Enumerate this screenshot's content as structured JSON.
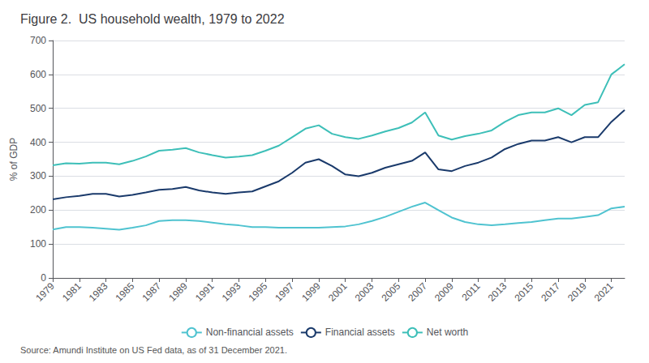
{
  "chart_data": {
    "type": "line",
    "title": "Figure 2.  US household wealth, 1979 to 2022",
    "annotations": [
      "Source: Amundi Institute on US Fed data, as of 31 December 2021."
    ],
    "y_label": "% of GDP",
    "x": [
      1979,
      1980,
      1981,
      1982,
      1983,
      1984,
      1985,
      1986,
      1987,
      1988,
      1989,
      1990,
      1991,
      1992,
      1993,
      1994,
      1995,
      1996,
      1997,
      1998,
      1999,
      2000,
      2001,
      2002,
      2003,
      2004,
      2005,
      2006,
      2007,
      2008,
      2009,
      2010,
      2011,
      2012,
      2013,
      2014,
      2015,
      2016,
      2017,
      2018,
      2019,
      2020,
      2021,
      2022
    ],
    "series": [
      {
        "name": "Non-financial assets",
        "color": "#4fc3d0",
        "values": [
          143,
          150,
          150,
          148,
          145,
          142,
          148,
          155,
          168,
          170,
          170,
          168,
          163,
          158,
          155,
          150,
          150,
          148,
          148,
          148,
          148,
          150,
          152,
          158,
          168,
          180,
          195,
          210,
          222,
          200,
          178,
          165,
          158,
          155,
          158,
          162,
          165,
          170,
          175,
          175,
          180,
          185,
          205,
          210
        ]
      },
      {
        "name": "Financial assets",
        "color": "#1a3a6b",
        "values": [
          232,
          238,
          242,
          248,
          248,
          240,
          245,
          252,
          260,
          262,
          268,
          258,
          252,
          248,
          252,
          255,
          270,
          285,
          310,
          340,
          350,
          330,
          305,
          300,
          310,
          325,
          335,
          345,
          370,
          320,
          315,
          330,
          340,
          355,
          380,
          395,
          405,
          405,
          415,
          400,
          415,
          415,
          460,
          495
        ]
      },
      {
        "name": "Net worth",
        "color": "#3dbfb8",
        "values": [
          332,
          338,
          337,
          340,
          340,
          335,
          345,
          358,
          375,
          378,
          383,
          370,
          362,
          355,
          358,
          362,
          375,
          390,
          415,
          440,
          450,
          425,
          415,
          410,
          420,
          432,
          442,
          458,
          488,
          420,
          408,
          418,
          425,
          435,
          460,
          480,
          488,
          488,
          500,
          480,
          510,
          518,
          600,
          630
        ]
      }
    ],
    "xlim": [
      1979,
      2022
    ],
    "xticks": [
      1979,
      1981,
      1983,
      1985,
      1987,
      1989,
      1991,
      1993,
      1995,
      1997,
      1999,
      2001,
      2003,
      2005,
      2007,
      2009,
      2011,
      2013,
      2015,
      2017,
      2019,
      2021
    ],
    "ylim": [
      0,
      700
    ],
    "yticks": [
      0,
      100,
      200,
      300,
      400,
      500,
      600,
      700
    ],
    "grid": true,
    "legend": "bottom"
  }
}
